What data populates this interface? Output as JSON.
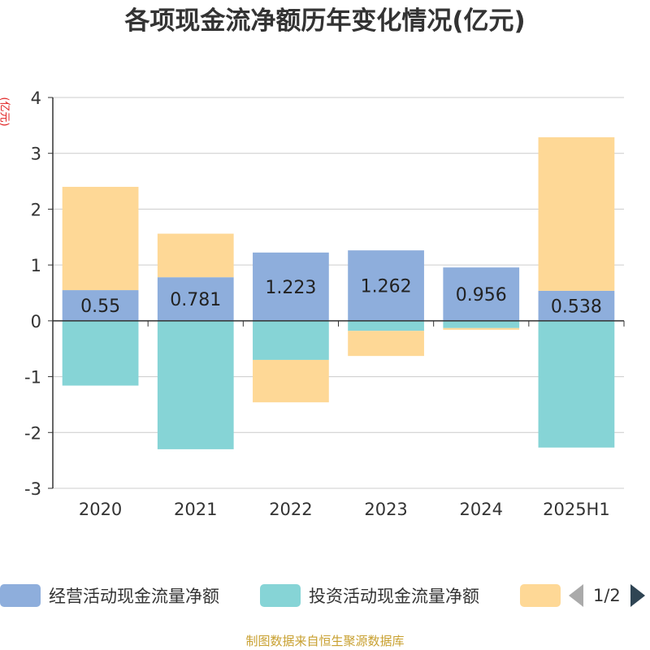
{
  "title": "各项现金流净额历年变化情况(亿元)",
  "source": "制图数据来自恒生聚源数据库",
  "chart_data": {
    "type": "bar",
    "stacked": true,
    "title": "各项现金流净额历年变化情况(亿元)",
    "ylabel": "(亿元)",
    "ylim": [
      -3,
      4
    ],
    "yticks": [
      -3,
      -2,
      -1,
      0,
      1,
      2,
      3,
      4
    ],
    "grid": true,
    "categories": [
      "2020",
      "2021",
      "2022",
      "2023",
      "2024",
      "2025H1"
    ],
    "series": [
      {
        "name": "经营活动现金流量净额",
        "color": "#8eaedc",
        "values": [
          0.55,
          0.781,
          1.223,
          1.262,
          0.956,
          0.538
        ],
        "data_labels": [
          "0.55",
          "0.781",
          "1.223",
          "1.262",
          "0.956",
          "0.538"
        ]
      },
      {
        "name": "投资活动现金流量净额",
        "color": "#86d4d6",
        "values": [
          -1.16,
          -2.3,
          -0.7,
          -0.18,
          -0.13,
          -2.27
        ]
      },
      {
        "name": "",
        "color": "#fed896",
        "values": [
          1.85,
          0.78,
          -0.76,
          -0.45,
          -0.03,
          2.75
        ]
      }
    ]
  },
  "legend": {
    "pager_text": "1/2",
    "pager_prev_icon": "triangle-left-icon",
    "pager_next_icon": "triangle-right-icon"
  }
}
